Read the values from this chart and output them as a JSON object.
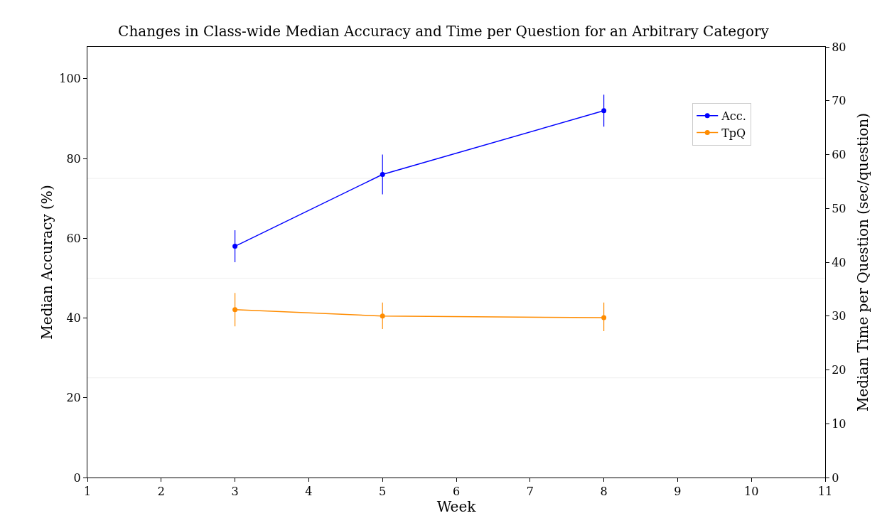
{
  "chart_data": {
    "type": "line",
    "title": "Changes in Class-wide Median Accuracy and Time per Question for an Arbitrary Category",
    "xlabel": "Week",
    "ylabel": "Median Accuracy (%)",
    "y2label": "Median Time per Question (sec/question)",
    "x": [
      3,
      5,
      8
    ],
    "series": [
      {
        "name": "Acc.",
        "color": "#0000ff",
        "values": [
          58,
          76,
          92
        ],
        "errors": [
          [
            54,
            62
          ],
          [
            71,
            81
          ],
          [
            88,
            96
          ]
        ]
      },
      {
        "name": "TpQ",
        "color": "#ff8c00",
        "axis": "y2",
        "values": [
          31.2,
          30.0,
          29.7
        ],
        "errors": [
          [
            28.1,
            34.3
          ],
          [
            27.6,
            32.5
          ],
          [
            27.2,
            32.5
          ]
        ]
      }
    ],
    "xlim": [
      1,
      11
    ],
    "xticks": [
      1,
      2,
      3,
      4,
      5,
      6,
      7,
      8,
      9,
      10,
      11
    ],
    "ylim": [
      0,
      108
    ],
    "yticks": [
      0,
      20,
      40,
      60,
      80,
      100
    ],
    "y2lim": [
      0,
      80
    ],
    "y2ticks": [
      0,
      10,
      20,
      30,
      40,
      50,
      60,
      70,
      80
    ],
    "ref_lines": [
      {
        "axis": "y",
        "value": 25,
        "color": "#eeeeee"
      },
      {
        "axis": "y",
        "value": 50,
        "color": "#eeeeee"
      },
      {
        "axis": "y",
        "value": 75,
        "color": "#eeeeee"
      }
    ],
    "legend": "top right",
    "marker": "circle",
    "line_style": "solid",
    "grid": false
  }
}
